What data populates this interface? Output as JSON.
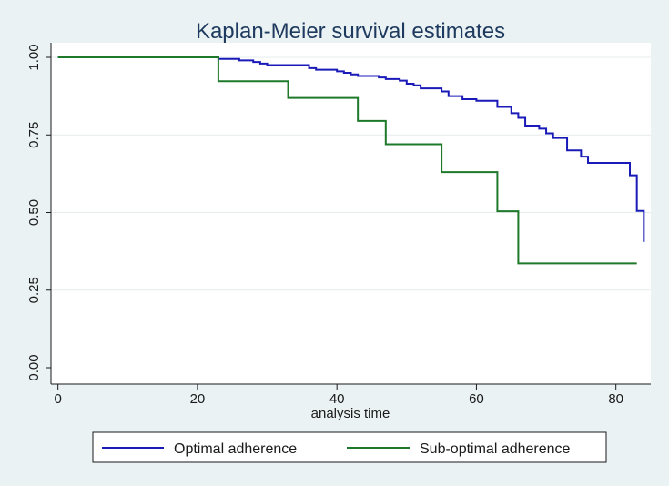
{
  "chart_data": {
    "type": "line",
    "step": true,
    "title": "Kaplan-Meier survival estimates",
    "xlabel": "analysis time",
    "ylabel": "",
    "xlim": [
      -1,
      85
    ],
    "ylim": [
      0,
      1.0
    ],
    "xticks": [
      "0",
      "20",
      "40",
      "60",
      "80"
    ],
    "xtick_values": [
      0,
      20,
      40,
      60,
      80
    ],
    "yticks": [
      "0.00",
      "0.25",
      "0.50",
      "0.75",
      "1.00"
    ],
    "ytick_values": [
      0,
      0.25,
      0.5,
      0.75,
      1.0
    ],
    "grid": true,
    "legend_position": "bottom",
    "series": [
      {
        "name": "Optimal adherence",
        "color": "#1a1ab8",
        "x": [
          0,
          22,
          23,
          26,
          28,
          29,
          30,
          32,
          35,
          36,
          37,
          38,
          40,
          41,
          42,
          43,
          44,
          46,
          47,
          48,
          49,
          50,
          51,
          52,
          55,
          56,
          58,
          60,
          63,
          65,
          66,
          67,
          68,
          69,
          70,
          71,
          73,
          75,
          76,
          78,
          80,
          82,
          83,
          84
        ],
        "y": [
          1.0,
          1.0,
          0.995,
          0.99,
          0.985,
          0.98,
          0.975,
          0.975,
          0.975,
          0.965,
          0.96,
          0.96,
          0.955,
          0.95,
          0.945,
          0.94,
          0.94,
          0.935,
          0.93,
          0.93,
          0.925,
          0.915,
          0.91,
          0.9,
          0.89,
          0.875,
          0.865,
          0.86,
          0.84,
          0.82,
          0.805,
          0.78,
          0.78,
          0.77,
          0.755,
          0.74,
          0.7,
          0.68,
          0.66,
          0.66,
          0.66,
          0.62,
          0.505,
          0.405
        ]
      },
      {
        "name": "Sub-optimal adherence",
        "color": "#1e7a2a",
        "x": [
          0,
          23,
          33,
          43,
          47,
          55,
          63,
          66,
          83
        ],
        "y": [
          1.0,
          0.923,
          0.869,
          0.795,
          0.72,
          0.63,
          0.504,
          0.336,
          0.336
        ]
      }
    ]
  }
}
